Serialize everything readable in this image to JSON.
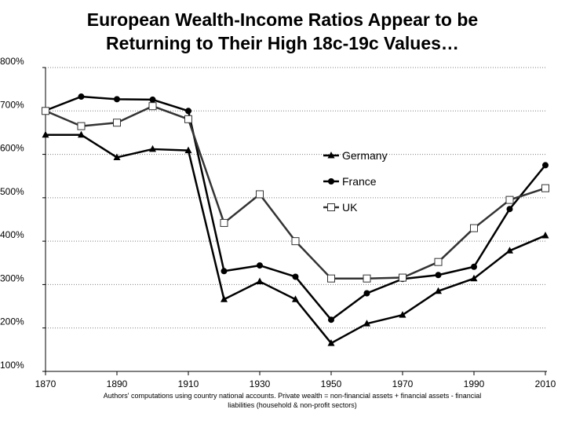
{
  "title_line1": "European Wealth-Income Ratios Appear to be",
  "title_line2": "Returning to Their High 18c-19c Values…",
  "note_line1": "Authors' computations using country national accounts. Private wealth = non-financial assets + financial assets - financial",
  "note_line2": "liabilities (household & non-profit sectors)",
  "chart_data": {
    "type": "line",
    "x": [
      1870,
      1880,
      1890,
      1900,
      1910,
      1920,
      1930,
      1940,
      1950,
      1960,
      1970,
      1980,
      1990,
      2000,
      2010
    ],
    "xticks": [
      1870,
      1890,
      1910,
      1930,
      1950,
      1970,
      1990,
      2010
    ],
    "yticks": [
      100,
      200,
      300,
      400,
      500,
      600,
      700,
      800
    ],
    "ylim": [
      100,
      800
    ],
    "xlim": [
      1870,
      2010
    ],
    "y_tick_suffix": "%",
    "grid": "horizontal dotted",
    "legend_position": "center-right",
    "series": [
      {
        "name": "Germany",
        "marker": "triangle",
        "color": "#000000",
        "values": [
          645,
          645,
          593,
          612,
          609,
          266,
          307,
          266,
          165,
          210,
          230,
          285,
          314,
          378,
          413
        ]
      },
      {
        "name": "France",
        "marker": "circle",
        "color": "#000000",
        "values": [
          701,
          733,
          727,
          726,
          700,
          331,
          344,
          318,
          219,
          280,
          313,
          322,
          341,
          474,
          575
        ]
      },
      {
        "name": "UK",
        "marker": "square",
        "color": "#333333",
        "values": [
          700,
          665,
          673,
          711,
          681,
          442,
          508,
          400,
          314,
          314,
          316,
          352,
          430,
          495,
          522
        ]
      }
    ]
  }
}
